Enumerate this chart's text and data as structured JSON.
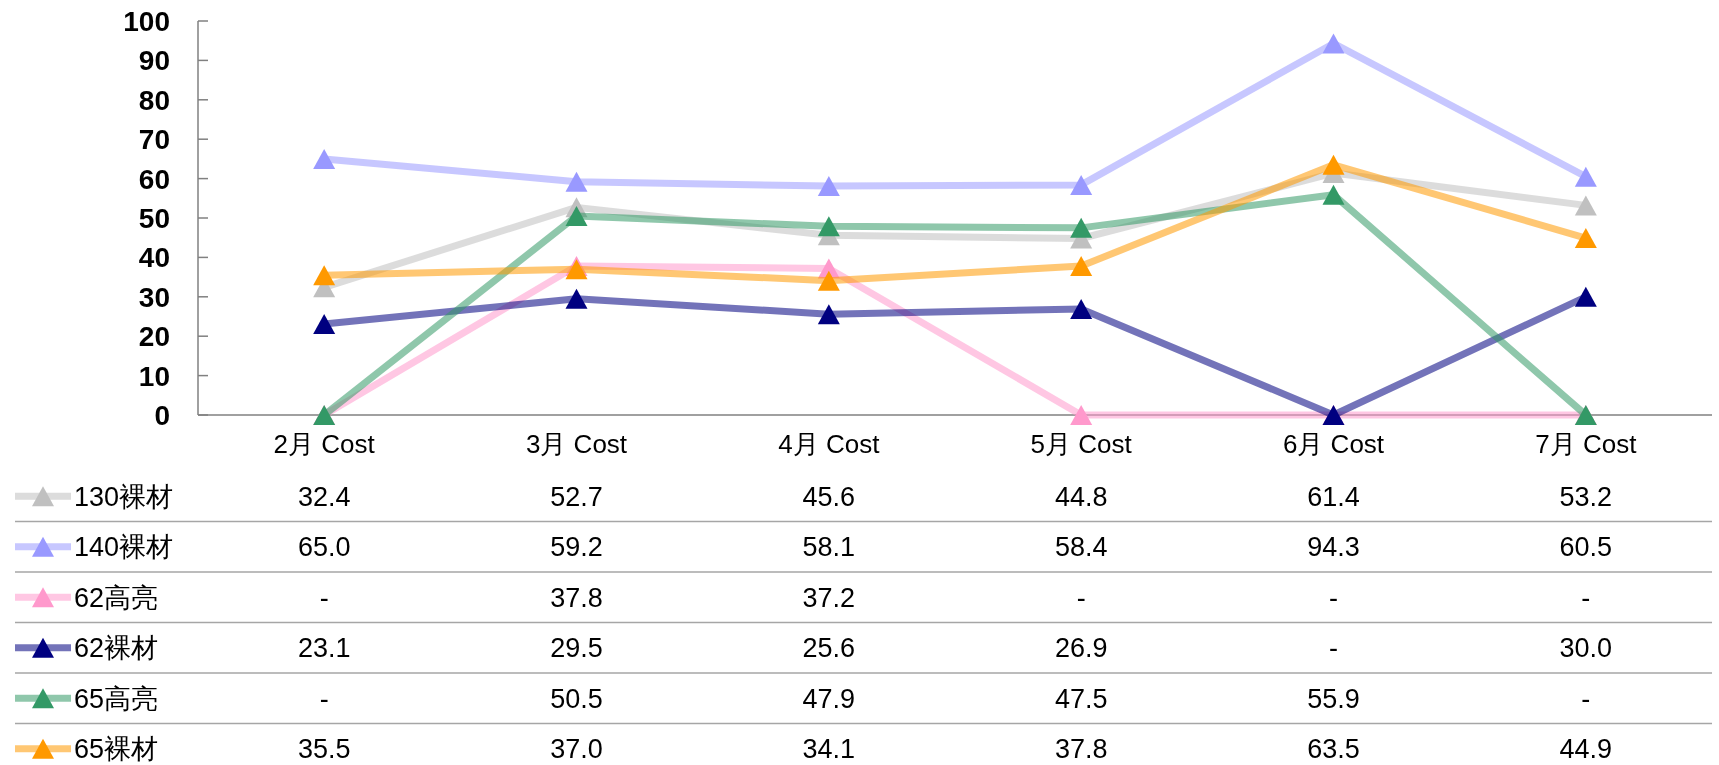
{
  "chart_data": {
    "type": "line",
    "categories": [
      "2月 Cost",
      "3月 Cost",
      "4月 Cost",
      "5月 Cost",
      "6月 Cost",
      "7月 Cost"
    ],
    "series": [
      {
        "name": "130裸材",
        "color": "#c0c0c0",
        "values": [
          32.4,
          52.7,
          45.6,
          44.8,
          61.4,
          53.2
        ],
        "value_labels": [
          "32.4",
          "52.7",
          "45.6",
          "44.8",
          "61.4",
          "53.2"
        ]
      },
      {
        "name": "140裸材",
        "color": "#9999ff",
        "values": [
          65.0,
          59.2,
          58.1,
          58.4,
          94.3,
          60.5
        ],
        "value_labels": [
          "65.0",
          "59.2",
          "58.1",
          "58.4",
          "94.3",
          "60.5"
        ]
      },
      {
        "name": "62高亮",
        "color": "#ff99cc",
        "values": [
          0,
          37.8,
          37.2,
          0,
          0,
          0
        ],
        "value_labels": [
          "-",
          "37.8",
          "37.2",
          "-",
          "-",
          "-"
        ]
      },
      {
        "name": "62裸材",
        "color": "#000080",
        "values": [
          23.1,
          29.5,
          25.6,
          26.9,
          0,
          30.0
        ],
        "value_labels": [
          "23.1",
          "29.5",
          "25.6",
          "26.9",
          "-",
          "30.0"
        ]
      },
      {
        "name": "65高亮",
        "color": "#339966",
        "values": [
          0,
          50.5,
          47.9,
          47.5,
          55.9,
          0
        ],
        "value_labels": [
          "-",
          "50.5",
          "47.9",
          "47.5",
          "55.9",
          "-"
        ]
      },
      {
        "name": "65裸材",
        "color": "#ff9900",
        "values": [
          35.5,
          37.0,
          34.1,
          37.8,
          63.5,
          44.9
        ],
        "value_labels": [
          "35.5",
          "37.0",
          "34.1",
          "37.8",
          "63.5",
          "44.9"
        ]
      }
    ],
    "ylim": [
      0,
      100
    ],
    "yticks": [
      0,
      10,
      20,
      30,
      40,
      50,
      60,
      70,
      80,
      90,
      100
    ],
    "grid": false,
    "legend": "bottom left",
    "marker": "triangle",
    "line_style": "solid"
  }
}
